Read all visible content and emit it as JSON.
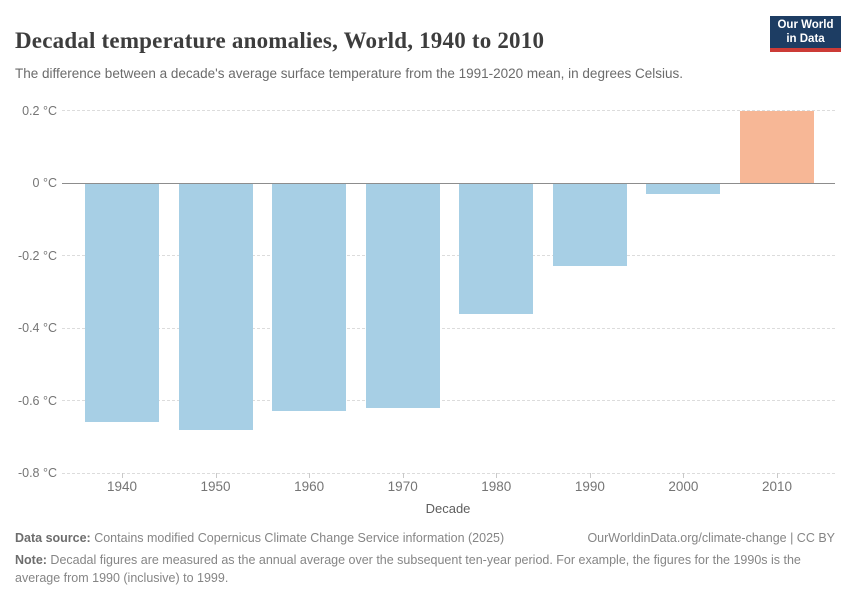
{
  "header": {
    "title": "Decadal temperature anomalies, World, 1940 to 2010",
    "subtitle": "The difference between a decade's average surface temperature from the 1991-2020 mean, in degrees Celsius.",
    "logo": {
      "line1": "Our World",
      "line2": "in Data"
    }
  },
  "chart_data": {
    "type": "bar",
    "title": "Decadal temperature anomalies, World, 1940 to 2010",
    "categories": [
      "1940",
      "1950",
      "1960",
      "1970",
      "1980",
      "1990",
      "2000",
      "2010"
    ],
    "values": [
      -0.66,
      -0.68,
      -0.63,
      -0.62,
      -0.36,
      -0.23,
      -0.03,
      0.2
    ],
    "xlabel": "Decade",
    "ylabel": "",
    "unit": "°C",
    "ylim": [
      -0.8,
      0.25
    ],
    "ytick_values": [
      0.2,
      0,
      -0.2,
      -0.4,
      -0.6,
      -0.8
    ],
    "ytick_labels": [
      "0.2 °C",
      "0 °C",
      "-0.2 °C",
      "-0.4 °C",
      "-0.6 °C",
      "-0.8 °C"
    ],
    "grid": true,
    "legend": false,
    "positive_color": "#f7b796",
    "negative_color": "#a7cfe5",
    "zero_line_color": "#8d8d8d"
  },
  "footer": {
    "datasource_label": "Data source:",
    "datasource_text": " Contains modified Copernicus Climate Change Service information (2025)",
    "link_text": "OurWorldinData.org/climate-change | CC BY",
    "note_label": "Note:",
    "note_text": " Decadal figures are measured as the annual average over the subsequent ten-year period. For example, the figures for the 1990s is the average from 1990 (inclusive) to 1999."
  }
}
